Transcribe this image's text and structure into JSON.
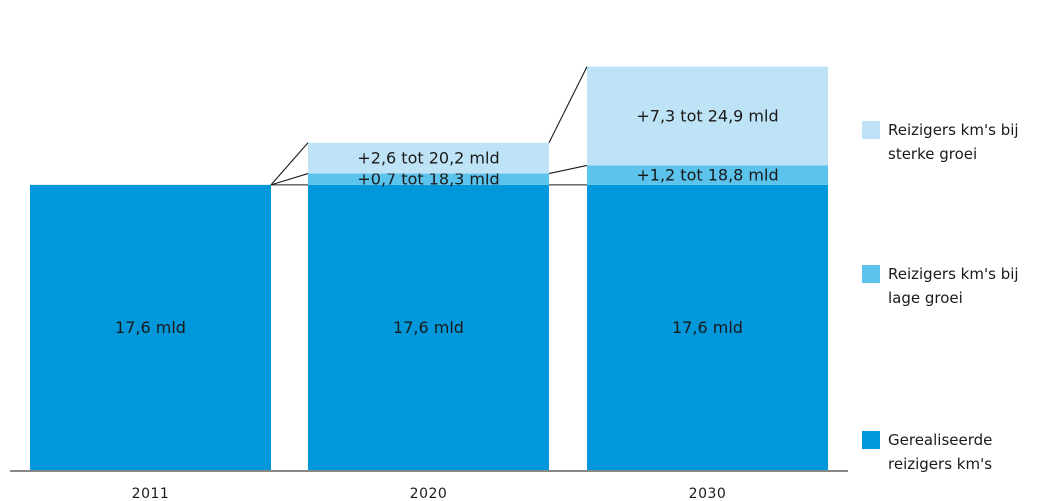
{
  "chart_data": {
    "type": "bar",
    "stacked": true,
    "categories": [
      "2011",
      "2020",
      "2030"
    ],
    "ylim": [
      0,
      25
    ],
    "series": [
      {
        "name": "Gerealiseerde reizigers km's",
        "color": "#0098DA",
        "values": [
          17.6,
          17.6,
          17.6
        ],
        "labels": [
          "17,6 mld",
          "17,6 mld",
          "17,6 mld"
        ]
      },
      {
        "name": "Reizigers km's bij lage groei",
        "color": "#5BC3EC",
        "values": [
          0,
          0.7,
          1.2
        ],
        "labels": [
          "",
          "+0,7 tot 18,3 mld",
          "+1,2 tot 18,8 mld"
        ]
      },
      {
        "name": "Reizigers km's bij sterke groei",
        "color": "#BFE3F6",
        "values": [
          0,
          1.9,
          6.1
        ],
        "labels": [
          "",
          "+2,6 tot 20,2 mld",
          "+7,3 tot 24,9 mld"
        ]
      }
    ],
    "legend_position": "right"
  }
}
